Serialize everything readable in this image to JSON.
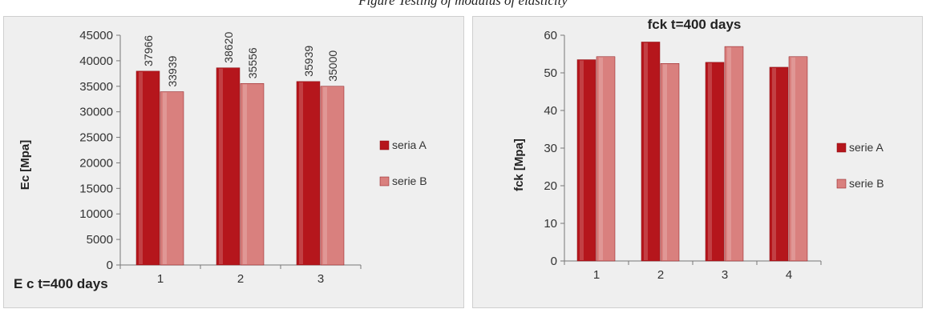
{
  "caption": "Figure Testing of modulus of elasticity",
  "chart_data": [
    {
      "type": "bar",
      "title": "E c t=400 days",
      "xlabel": "",
      "ylabel": "Ec [Mpa]",
      "categories": [
        "1",
        "2",
        "3"
      ],
      "ylim": [
        0,
        45000
      ],
      "yticks": [
        "0",
        "5000",
        "10000",
        "15000",
        "20000",
        "25000",
        "30000",
        "35000",
        "40000",
        "45000"
      ],
      "series": [
        {
          "name": "seria A",
          "values": [
            37966,
            38620,
            35939
          ],
          "labels": [
            "37966",
            "38620",
            "35939"
          ],
          "color": "#b5161c"
        },
        {
          "name": "serie B",
          "values": [
            33939,
            35556,
            35000
          ],
          "labels": [
            "33939",
            "35556",
            "35000"
          ],
          "color": "#d9807e"
        }
      ],
      "legend": "right",
      "grid": false
    },
    {
      "type": "bar",
      "title": "fck t=400 days",
      "xlabel": "",
      "ylabel": "fck [Mpa]",
      "categories": [
        "1",
        "2",
        "3",
        "4"
      ],
      "ylim": [
        0,
        60
      ],
      "yticks": [
        "0",
        "10",
        "20",
        "30",
        "40",
        "50",
        "60"
      ],
      "series": [
        {
          "name": "serie A",
          "values": [
            53.5,
            58.2,
            52.8,
            51.5
          ],
          "color": "#b5161c"
        },
        {
          "name": "serie B",
          "values": [
            54.3,
            52.5,
            57.0,
            54.3
          ],
          "color": "#d9807e"
        }
      ],
      "legend": "right",
      "grid": false
    }
  ]
}
